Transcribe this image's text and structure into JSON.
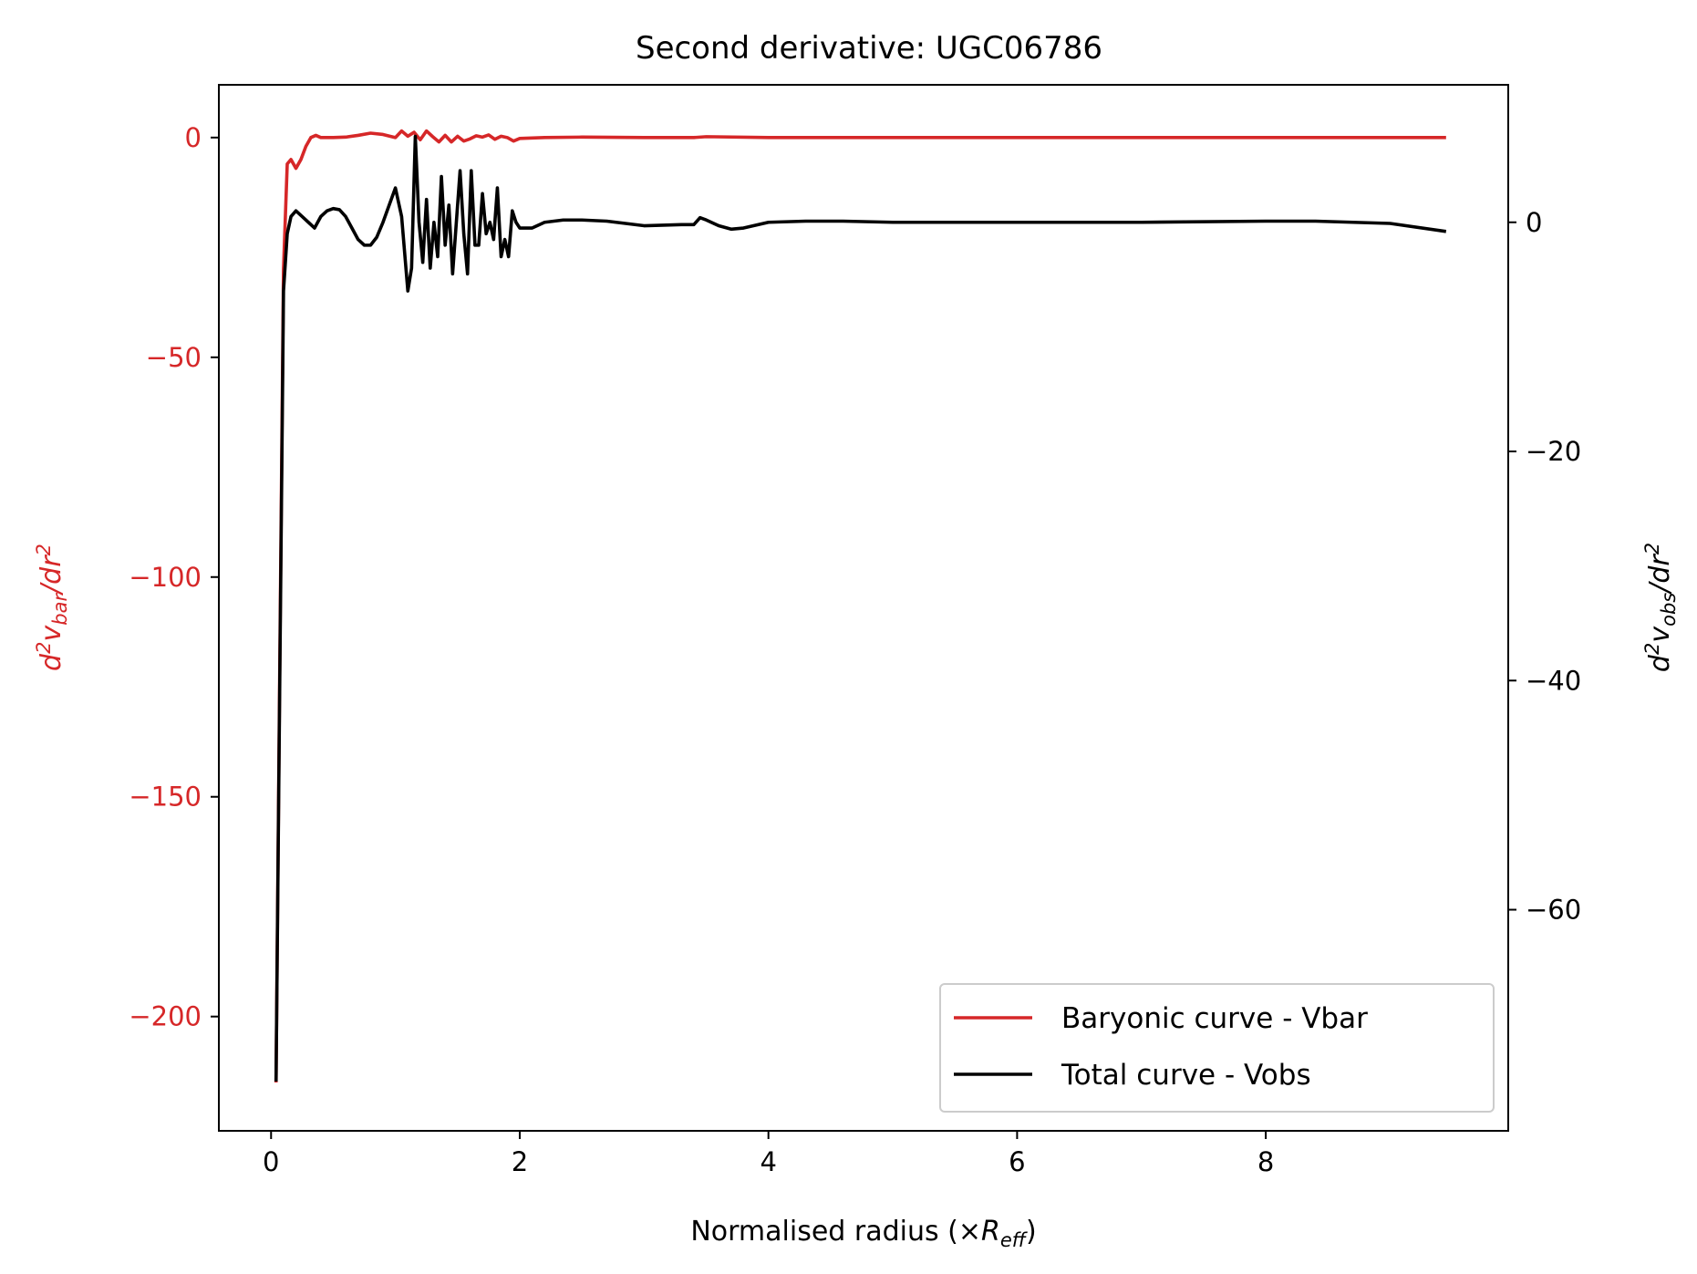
{
  "chart_data": {
    "type": "line",
    "title": "Second derivative: UGC06786",
    "xlabel": {
      "main": "Normalised radius (×",
      "var": "R",
      "sub": "eff",
      "close": ")"
    },
    "ylabel_left": {
      "pre": "d",
      "sup1": "2",
      "var": "v",
      "sub": "bar",
      "mid": "/dr",
      "sup2": "2"
    },
    "ylabel_right": {
      "pre": "d",
      "sup1": "2",
      "var": "v",
      "sub": "obs",
      "mid": "/dr",
      "sup2": "2"
    },
    "xlim": [
      -0.42,
      9.95
    ],
    "ylim_left": [
      -226,
      12
    ],
    "ylim_right": [
      -79.3,
      12
    ],
    "x_ticks": [
      0,
      2,
      4,
      6,
      8
    ],
    "x_tick_labels": [
      "0",
      "2",
      "4",
      "6",
      "8"
    ],
    "y_left_ticks": [
      0,
      -50,
      -100,
      -150,
      -200
    ],
    "y_left_tick_labels": [
      "0",
      "−50",
      "−100",
      "−150",
      "−200"
    ],
    "y_right_ticks": [
      0,
      -20,
      -40,
      -60
    ],
    "y_right_tick_labels": [
      "0",
      "−20",
      "−40",
      "−60"
    ],
    "colors": {
      "left_axis": "#d62728",
      "vbar": "#d62728",
      "vobs": "#000000",
      "axes": "#000000"
    },
    "legend_placement": "lower-right",
    "series": [
      {
        "name": "Baryonic curve - Vbar",
        "axis": "left",
        "color": "#d62728",
        "x": [
          0.04,
          0.07,
          0.1,
          0.13,
          0.16,
          0.2,
          0.24,
          0.28,
          0.32,
          0.36,
          0.4,
          0.5,
          0.6,
          0.7,
          0.8,
          0.9,
          1.0,
          1.05,
          1.1,
          1.15,
          1.2,
          1.25,
          1.3,
          1.35,
          1.4,
          1.45,
          1.5,
          1.55,
          1.6,
          1.65,
          1.7,
          1.75,
          1.8,
          1.85,
          1.9,
          1.95,
          2.0,
          2.2,
          2.5,
          3.0,
          3.4,
          3.5,
          4.0,
          5.0,
          6.0,
          7.0,
          8.0,
          9.0,
          9.45
        ],
        "y": [
          -215,
          -120,
          -30,
          -6,
          -5,
          -7,
          -5,
          -2,
          0,
          0.5,
          0,
          0,
          0.1,
          0.5,
          1,
          0.7,
          0,
          1.5,
          0.3,
          1.2,
          -0.5,
          1.5,
          0.2,
          -1,
          0.5,
          -1,
          0.3,
          -0.8,
          -0.3,
          0.4,
          0.1,
          0.6,
          -0.4,
          0.3,
          0,
          -0.8,
          -0.2,
          0,
          0.1,
          0,
          0,
          0.2,
          0,
          0,
          0,
          0,
          0,
          0,
          0
        ]
      },
      {
        "name": "Total curve - Vobs",
        "axis": "right",
        "color": "#000000",
        "x": [
          0.04,
          0.07,
          0.1,
          0.13,
          0.16,
          0.2,
          0.25,
          0.3,
          0.35,
          0.4,
          0.45,
          0.5,
          0.55,
          0.6,
          0.65,
          0.7,
          0.75,
          0.8,
          0.85,
          0.9,
          0.95,
          1.0,
          1.05,
          1.1,
          1.13,
          1.16,
          1.19,
          1.22,
          1.25,
          1.28,
          1.31,
          1.34,
          1.37,
          1.4,
          1.43,
          1.46,
          1.49,
          1.52,
          1.55,
          1.58,
          1.61,
          1.64,
          1.67,
          1.7,
          1.73,
          1.76,
          1.79,
          1.82,
          1.85,
          1.88,
          1.91,
          1.94,
          1.97,
          2.0,
          2.1,
          2.2,
          2.35,
          2.5,
          2.7,
          3.0,
          3.3,
          3.4,
          3.45,
          3.5,
          3.6,
          3.7,
          3.8,
          4.0,
          4.3,
          4.6,
          5.0,
          6.0,
          7.0,
          8.0,
          8.4,
          9.0,
          9.45
        ],
        "y": [
          -75,
          -40,
          -6,
          -1,
          0.5,
          1.0,
          0.5,
          0,
          -0.5,
          0.5,
          1.0,
          1.2,
          1.1,
          0.5,
          -0.5,
          -1.5,
          -2.0,
          -2.0,
          -1.3,
          0,
          1.5,
          3.0,
          0.5,
          -6.0,
          -4.0,
          7.5,
          0,
          -3.5,
          2.0,
          -4.0,
          0,
          -3.0,
          4.0,
          -2.0,
          1.5,
          -4.5,
          0,
          4.5,
          -1.0,
          -4.5,
          4.5,
          -2.0,
          -2.0,
          2.5,
          -1.0,
          0,
          -1.5,
          3.0,
          -3.0,
          -1.5,
          -3.0,
          1.0,
          0,
          -0.5,
          -0.5,
          0,
          0.2,
          0.2,
          0.1,
          -0.3,
          -0.2,
          -0.2,
          0.4,
          0.2,
          -0.3,
          -0.6,
          -0.5,
          0,
          0.1,
          0.1,
          0,
          0,
          0,
          0.1,
          0.1,
          -0.1,
          -0.8
        ]
      }
    ]
  }
}
